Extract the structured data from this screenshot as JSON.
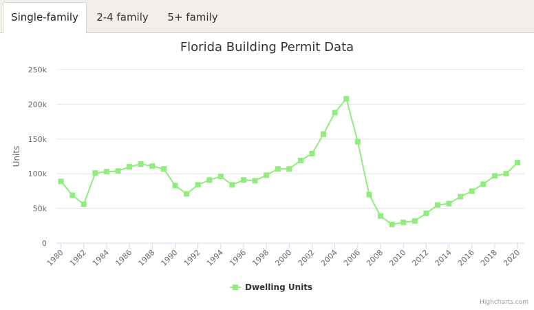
{
  "tabs": [
    {
      "label": "Single-family",
      "active": true
    },
    {
      "label": "2-4 family",
      "active": false
    },
    {
      "label": "5+ family",
      "active": false
    }
  ],
  "credit": "Highcharts.com",
  "colors": {
    "series": "#90ed7d",
    "tab_bg": "#f2efea",
    "grid": "#e6e6e6"
  },
  "chart_data": {
    "type": "line",
    "title": "Florida Building Permit Data",
    "ylabel": "Units",
    "xlabel": "",
    "ylim": [
      0,
      250000
    ],
    "y_ticks": [
      0,
      50000,
      100000,
      150000,
      200000,
      250000
    ],
    "y_tick_labels": [
      "0",
      "50k",
      "100k",
      "150k",
      "200k",
      "250k"
    ],
    "x_tick_labels": [
      "1980",
      "1982",
      "1984",
      "1986",
      "1988",
      "1990",
      "1992",
      "1994",
      "1996",
      "1998",
      "2000",
      "2002",
      "2004",
      "2006",
      "2008",
      "2010",
      "2012",
      "2014",
      "2016",
      "2018",
      "2020"
    ],
    "legend": "bottom-center",
    "grid": true,
    "series": [
      {
        "name": "Dwelling Units",
        "x": [
          1980,
          1981,
          1982,
          1983,
          1984,
          1985,
          1986,
          1987,
          1988,
          1989,
          1990,
          1991,
          1992,
          1993,
          1994,
          1995,
          1996,
          1997,
          1998,
          1999,
          2000,
          2001,
          2002,
          2003,
          2004,
          2005,
          2006,
          2007,
          2008,
          2009,
          2010,
          2011,
          2012,
          2013,
          2014,
          2015,
          2016,
          2017,
          2018,
          2019,
          2020
        ],
        "values": [
          89000,
          69000,
          56000,
          101000,
          103000,
          104000,
          110000,
          114000,
          111000,
          107000,
          83000,
          71000,
          84000,
          91000,
          96000,
          84000,
          91000,
          90000,
          98000,
          107000,
          107000,
          119000,
          129000,
          157000,
          188000,
          208000,
          146000,
          70000,
          39000,
          27000,
          30000,
          32000,
          43000,
          55000,
          57000,
          67000,
          75000,
          85000,
          97000,
          100000,
          116000
        ]
      }
    ]
  }
}
